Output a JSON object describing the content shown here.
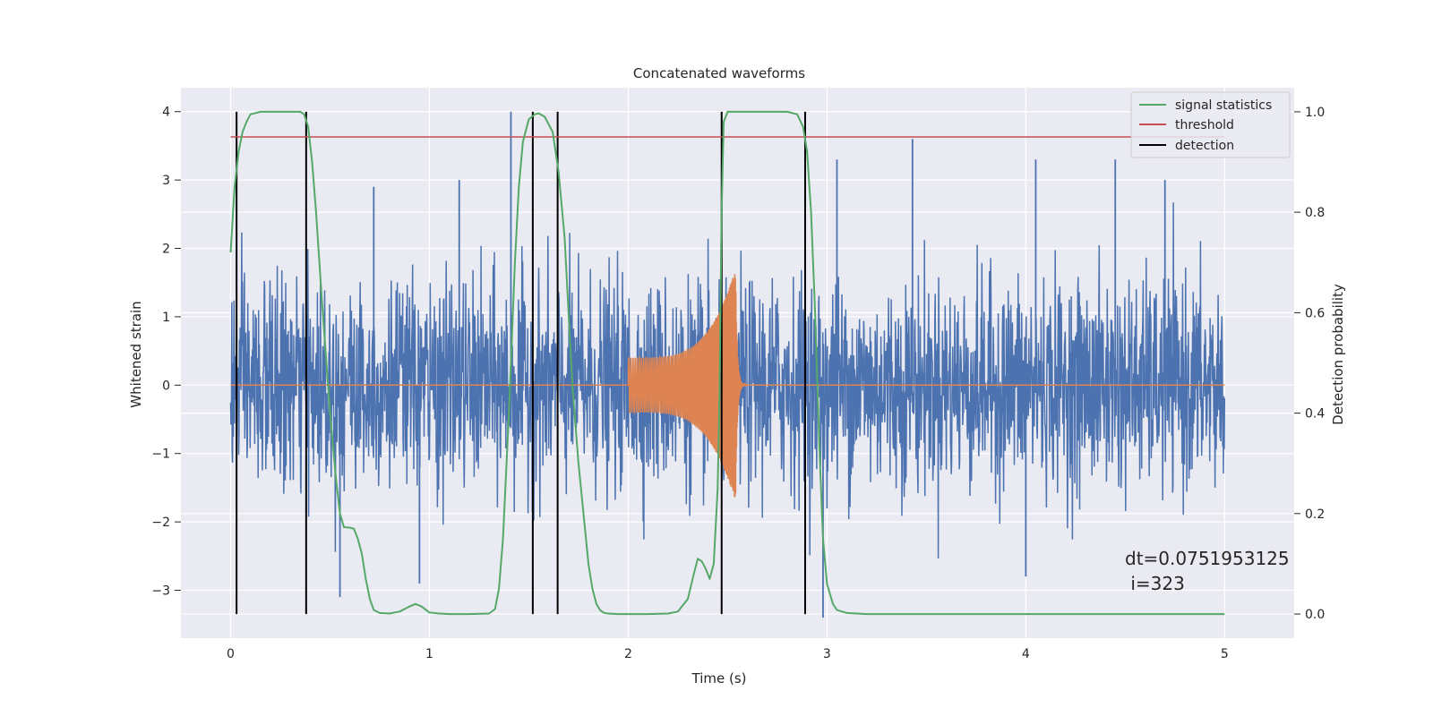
{
  "chart_data": {
    "type": "line",
    "title": "Concatenated waveforms",
    "xlabel": "Time (s)",
    "ylabel": "Whitened strain",
    "y2label": "Detection probability",
    "xlim": [
      -0.25,
      5.35
    ],
    "ylim": [
      -3.7,
      4.35
    ],
    "y2lim": [
      -0.048,
      1.048
    ],
    "xticks": [
      0,
      1,
      2,
      3,
      4,
      5
    ],
    "xtick_labels": [
      "0",
      "1",
      "2",
      "3",
      "4",
      "5"
    ],
    "yticks": [
      -3,
      -2,
      -1,
      0,
      1,
      2,
      3,
      4
    ],
    "ytick_labels": [
      "−3",
      "−2",
      "−1",
      "0",
      "1",
      "2",
      "3",
      "4"
    ],
    "y2ticks": [
      0.0,
      0.2,
      0.4,
      0.6,
      0.8,
      1.0
    ],
    "y2tick_labels": [
      "0.0",
      "0.2",
      "0.4",
      "0.6",
      "0.8",
      "1.0"
    ],
    "grid": true,
    "legend_position": "top-right",
    "legend": [
      {
        "label": "signal statistics",
        "color": "#55a868"
      },
      {
        "label": "threshold",
        "color": "#c44e52"
      },
      {
        "label": "detection",
        "color": "#000000"
      }
    ],
    "annotations": [
      "dt=0.0751953125",
      " i=323"
    ],
    "colors": {
      "strain": "#4c72b0",
      "injection": "#dd8452",
      "statistic": "#55a868",
      "threshold": "#c44e52",
      "detection": "#000000",
      "plot_bg": "#eaeaf2",
      "grid": "#ffffff"
    },
    "series": [
      {
        "name": "signal statistics",
        "axis": "right",
        "x": [
          0.0,
          0.02,
          0.04,
          0.06,
          0.08,
          0.1,
          0.15,
          0.2,
          0.3,
          0.35,
          0.37,
          0.39,
          0.41,
          0.43,
          0.46,
          0.5,
          0.53,
          0.55,
          0.57,
          0.6,
          0.62,
          0.64,
          0.66,
          0.68,
          0.7,
          0.72,
          0.75,
          0.8,
          0.85,
          0.9,
          0.93,
          0.96,
          1.0,
          1.05,
          1.1,
          1.2,
          1.3,
          1.33,
          1.35,
          1.37,
          1.4,
          1.43,
          1.45,
          1.47,
          1.5,
          1.53,
          1.55,
          1.58,
          1.62,
          1.65,
          1.68,
          1.7,
          1.72,
          1.75,
          1.78,
          1.8,
          1.82,
          1.84,
          1.86,
          1.88,
          1.9,
          1.95,
          2.0,
          2.1,
          2.2,
          2.25,
          2.3,
          2.33,
          2.35,
          2.37,
          2.39,
          2.41,
          2.43,
          2.45,
          2.46,
          2.47,
          2.48,
          2.5,
          2.55,
          2.6,
          2.7,
          2.8,
          2.85,
          2.88,
          2.9,
          2.92,
          2.94,
          2.96,
          2.98,
          3.0,
          3.03,
          3.05,
          3.1,
          3.2,
          3.5,
          4.0,
          4.5,
          5.0
        ],
        "values": [
          0.72,
          0.85,
          0.92,
          0.96,
          0.98,
          0.995,
          1.0,
          1.0,
          1.0,
          1.0,
          0.995,
          0.97,
          0.9,
          0.8,
          0.62,
          0.4,
          0.27,
          0.2,
          0.173,
          0.172,
          0.17,
          0.15,
          0.12,
          0.07,
          0.03,
          0.008,
          0.002,
          0.001,
          0.005,
          0.015,
          0.02,
          0.015,
          0.003,
          0.001,
          0.0,
          0.0,
          0.001,
          0.01,
          0.05,
          0.15,
          0.4,
          0.7,
          0.85,
          0.94,
          0.985,
          0.995,
          0.997,
          0.99,
          0.96,
          0.88,
          0.75,
          0.6,
          0.45,
          0.3,
          0.18,
          0.1,
          0.05,
          0.02,
          0.007,
          0.002,
          0.001,
          0.0,
          0.0,
          0.0,
          0.001,
          0.005,
          0.03,
          0.08,
          0.11,
          0.105,
          0.09,
          0.07,
          0.1,
          0.25,
          0.45,
          0.8,
          0.98,
          1.0,
          1.0,
          1.0,
          1.0,
          1.0,
          0.995,
          0.97,
          0.92,
          0.8,
          0.6,
          0.35,
          0.15,
          0.06,
          0.02,
          0.008,
          0.002,
          0.0,
          0.0,
          0.0,
          0.0,
          0.0
        ]
      },
      {
        "name": "threshold",
        "axis": "right",
        "x": [
          0.0,
          5.0
        ],
        "values": [
          0.95,
          0.95
        ]
      }
    ],
    "detections": [
      0.03,
      0.38,
      1.52,
      1.645,
      2.47,
      2.89
    ],
    "noise": {
      "x_start": 0.0,
      "x_end": 5.0,
      "std": 0.75,
      "spikes": [
        {
          "x": 1.41,
          "value": 4.0
        },
        {
          "x": 3.43,
          "value": 3.6
        },
        {
          "x": 4.05,
          "value": 3.3
        },
        {
          "x": 4.45,
          "value": 3.3
        },
        {
          "x": 1.15,
          "value": 3.0
        },
        {
          "x": 0.72,
          "value": 2.9
        },
        {
          "x": 0.55,
          "value": -3.1
        },
        {
          "x": 0.95,
          "value": -2.9
        },
        {
          "x": 2.98,
          "value": -3.4
        },
        {
          "x": 4.0,
          "value": -2.8
        },
        {
          "x": 3.05,
          "value": 3.3
        },
        {
          "x": 4.7,
          "value": 3.0
        }
      ]
    },
    "injection": {
      "x_start": 2.0,
      "x_merger": 2.54,
      "x_end": 2.6,
      "amplitude_start": 0.4,
      "amplitude_peak": 1.7
    }
  }
}
